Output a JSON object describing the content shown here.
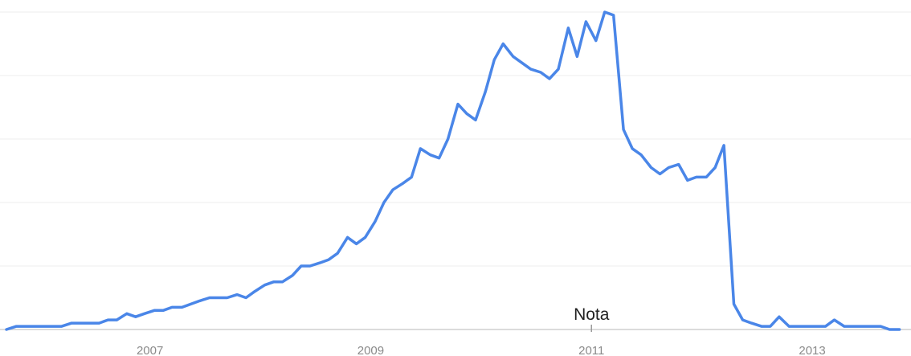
{
  "chart_data": {
    "type": "line",
    "title": "",
    "xlabel": "",
    "ylabel": "",
    "x_ticks": [
      {
        "label": "2007",
        "value": 2007.0
      },
      {
        "label": "2009",
        "value": 2009.0
      },
      {
        "label": "2011",
        "value": 2011.0
      },
      {
        "label": "2013",
        "value": 2013.0
      }
    ],
    "xlim": [
      2005.7,
      2013.8
    ],
    "ylim": [
      0,
      100
    ],
    "y_gridlines": [
      20,
      40,
      60,
      80,
      100
    ],
    "grid": true,
    "legend": "none",
    "line_color": "#4a86e8",
    "annotations": [
      {
        "label": "Nota",
        "x": 2011.0
      }
    ],
    "series": [
      {
        "x": [
          2005.7,
          2005.79,
          2005.87,
          2005.95,
          2006.04,
          2006.12,
          2006.2,
          2006.29,
          2006.37,
          2006.45,
          2006.54,
          2006.62,
          2006.7,
          2006.79,
          2006.87,
          2006.95,
          2007.04,
          2007.12,
          2007.2,
          2007.29,
          2007.37,
          2007.45,
          2007.54,
          2007.62,
          2007.7,
          2007.79,
          2007.87,
          2007.95,
          2008.04,
          2008.12,
          2008.2,
          2008.29,
          2008.37,
          2008.45,
          2008.54,
          2008.62,
          2008.7,
          2008.79,
          2008.87,
          2008.95,
          2009.04,
          2009.12,
          2009.2,
          2009.29,
          2009.37,
          2009.45,
          2009.54,
          2009.62,
          2009.7,
          2009.79,
          2009.87,
          2009.95,
          2010.04,
          2010.12,
          2010.2,
          2010.29,
          2010.37,
          2010.45,
          2010.54,
          2010.62,
          2010.7,
          2010.79,
          2010.87,
          2010.95,
          2011.04,
          2011.12,
          2011.2,
          2011.29,
          2011.37,
          2011.45,
          2011.54,
          2011.62,
          2011.7,
          2011.79,
          2011.87,
          2011.95,
          2012.04,
          2012.12,
          2012.2,
          2012.29,
          2012.37,
          2012.45,
          2012.54,
          2012.62,
          2012.7,
          2012.79,
          2012.87,
          2012.95,
          2013.04,
          2013.12,
          2013.2,
          2013.29,
          2013.37,
          2013.45,
          2013.54,
          2013.62,
          2013.7,
          2013.79
        ],
        "values": [
          0,
          1,
          1,
          1,
          1,
          1,
          1,
          2,
          2,
          2,
          2,
          3,
          3,
          5,
          4,
          5,
          6,
          6,
          7,
          7,
          8,
          9,
          10,
          10,
          10,
          11,
          10,
          12,
          14,
          15,
          15,
          17,
          20,
          20,
          21,
          22,
          24,
          29,
          27,
          29,
          34,
          40,
          44,
          46,
          48,
          57,
          55,
          54,
          60,
          71,
          68,
          66,
          75,
          85,
          90,
          86,
          84,
          82,
          81,
          79,
          82,
          95,
          86,
          97,
          91,
          100,
          99,
          63,
          57,
          55,
          51,
          49,
          51,
          52,
          47,
          48,
          48,
          51,
          58,
          8,
          3,
          2,
          1,
          1,
          4,
          1,
          1,
          1,
          1,
          1,
          3,
          1,
          1,
          1,
          1,
          1,
          0,
          0
        ]
      }
    ]
  }
}
